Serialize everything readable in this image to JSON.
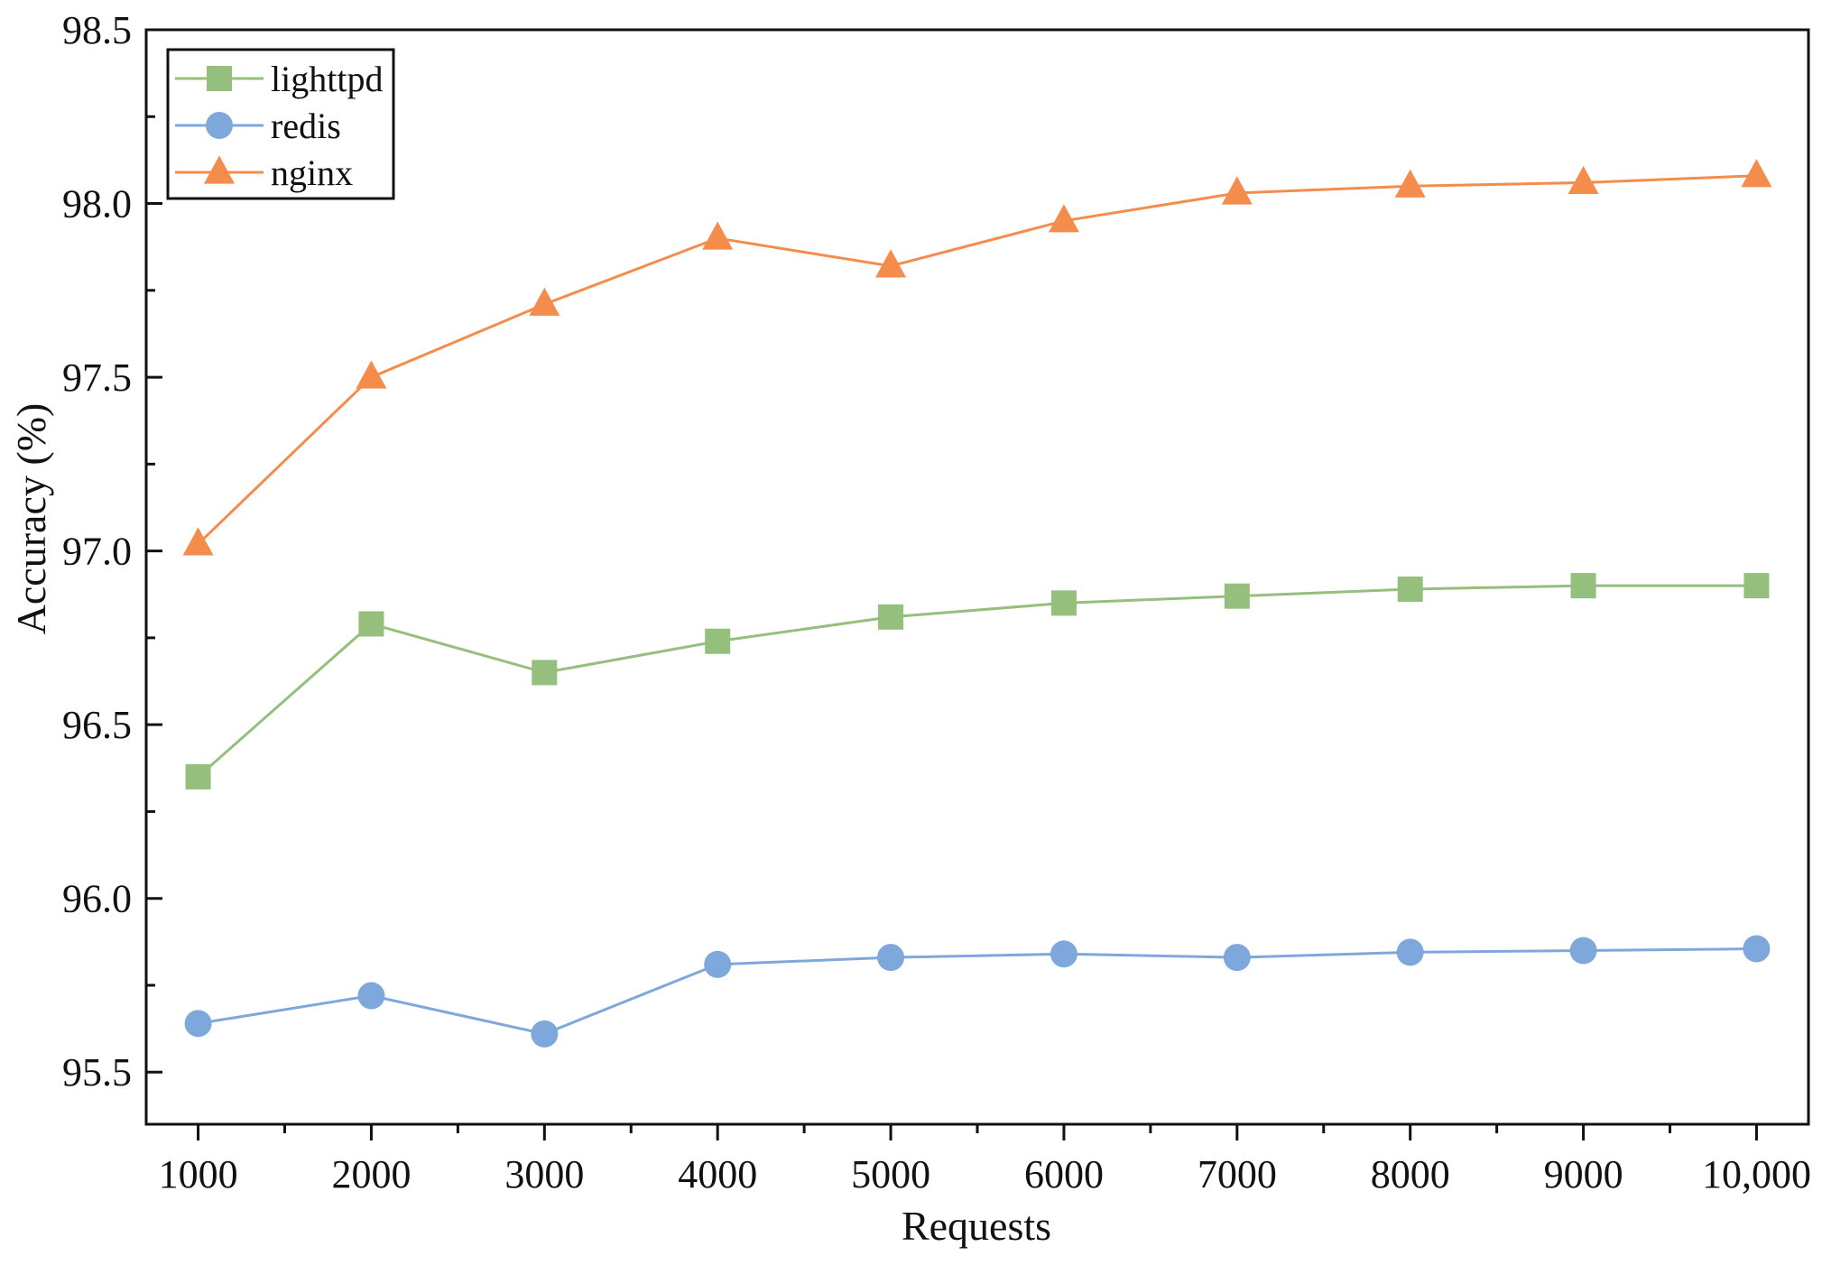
{
  "chart_data": {
    "type": "line",
    "xlabel": "Requests",
    "ylabel": "Accuracy (%)",
    "x": [
      1000,
      2000,
      3000,
      4000,
      5000,
      6000,
      7000,
      8000,
      9000,
      10000
    ],
    "x_tick_labels": [
      "1000",
      "2000",
      "3000",
      "4000",
      "5000",
      "6000",
      "7000",
      "8000",
      "9000",
      "10,000"
    ],
    "xlim": [
      700,
      10300
    ],
    "ylim": [
      95.35,
      98.5
    ],
    "y_ticks": [
      95.5,
      96.0,
      96.5,
      97.0,
      97.5,
      98.0,
      98.5
    ],
    "y_tick_labels": [
      "95.5",
      "96.0",
      "96.5",
      "97.0",
      "97.5",
      "98.0",
      "98.5"
    ],
    "grid": false,
    "legend_position": "top-left",
    "series": [
      {
        "name": "lighttpd",
        "color": "#94bf7c",
        "marker": "square",
        "values": [
          96.35,
          96.79,
          96.65,
          96.74,
          96.81,
          96.85,
          96.87,
          96.89,
          96.9,
          96.9
        ]
      },
      {
        "name": "redis",
        "color": "#7ea8dc",
        "marker": "circle",
        "values": [
          95.64,
          95.72,
          95.61,
          95.81,
          95.83,
          95.84,
          95.83,
          95.845,
          95.85,
          95.855
        ]
      },
      {
        "name": "nginx",
        "color": "#f48c4c",
        "marker": "triangle",
        "values": [
          97.02,
          97.5,
          97.71,
          97.9,
          97.82,
          97.95,
          98.03,
          98.05,
          98.06,
          98.08
        ]
      }
    ]
  }
}
